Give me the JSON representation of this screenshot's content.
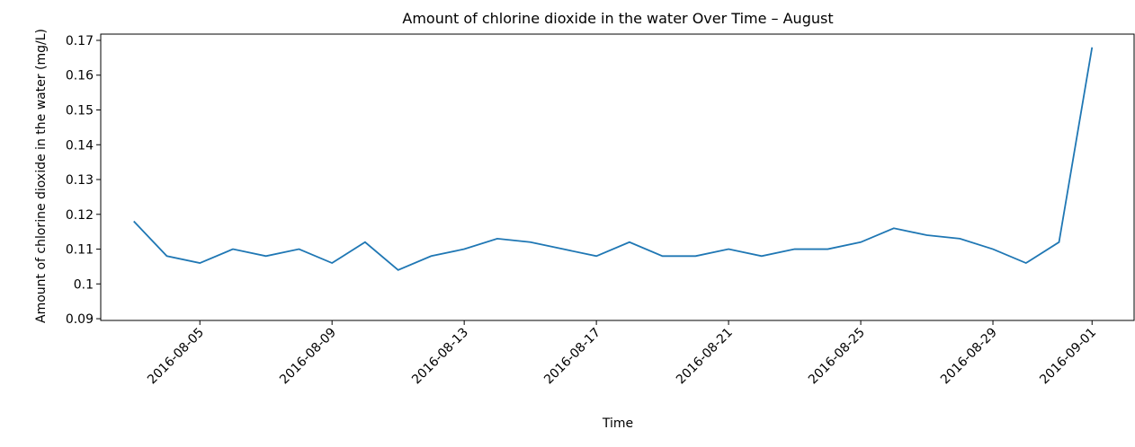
{
  "chart_data": {
    "type": "line",
    "title": "Amount of chlorine dioxide in the water Over Time – August",
    "xlabel": "Time",
    "ylabel": "Amount of chlorine dioxide in the water (mg/L)",
    "x": [
      "2016-08-03",
      "2016-08-04",
      "2016-08-05",
      "2016-08-06",
      "2016-08-07",
      "2016-08-08",
      "2016-08-09",
      "2016-08-10",
      "2016-08-11",
      "2016-08-12",
      "2016-08-13",
      "2016-08-14",
      "2016-08-15",
      "2016-08-16",
      "2016-08-17",
      "2016-08-18",
      "2016-08-19",
      "2016-08-20",
      "2016-08-21",
      "2016-08-22",
      "2016-08-23",
      "2016-08-24",
      "2016-08-25",
      "2016-08-26",
      "2016-08-27",
      "2016-08-28",
      "2016-08-29",
      "2016-08-30",
      "2016-08-31",
      "2016-09-01"
    ],
    "series": [
      {
        "name": "Amount of chlorine dioxide in the water (mg/L)",
        "color": "#1f77b4",
        "values": [
          0.118,
          0.108,
          0.106,
          0.11,
          0.108,
          0.11,
          0.106,
          0.112,
          0.104,
          0.108,
          0.11,
          0.113,
          0.112,
          0.11,
          0.108,
          0.112,
          0.108,
          0.108,
          0.11,
          0.108,
          0.11,
          0.11,
          0.112,
          0.116,
          0.114,
          0.113,
          0.11,
          0.106,
          0.112,
          0.168
        ]
      }
    ],
    "xlim": [
      "2016-08-02",
      "2016-09-02"
    ],
    "xticks": [
      "2016-08-05",
      "2016-08-09",
      "2016-08-13",
      "2016-08-17",
      "2016-08-21",
      "2016-08-25",
      "2016-08-29",
      "2016-09-01"
    ],
    "ylim": [
      0.0895,
      0.1718
    ],
    "yticks": [
      0.09,
      0.1,
      0.11,
      0.12,
      0.13,
      0.14,
      0.15,
      0.16,
      0.17
    ],
    "grid": false
  }
}
